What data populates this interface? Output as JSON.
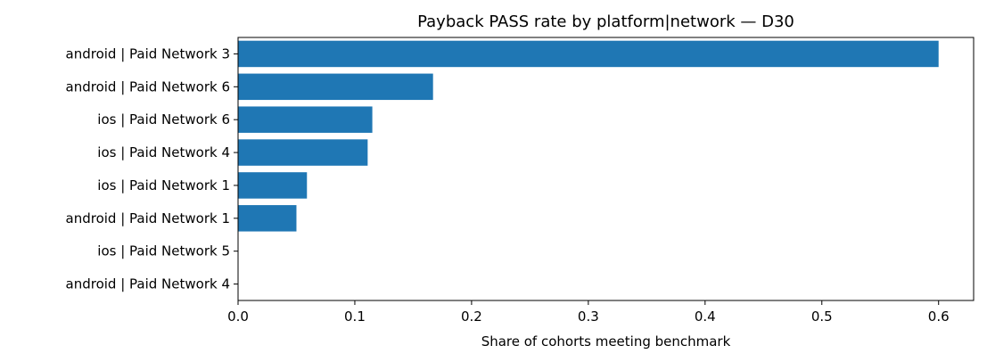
{
  "chart_data": {
    "type": "bar",
    "orientation": "horizontal",
    "title": "Payback PASS rate by platform|network — D30",
    "xlabel": "Share of cohorts meeting benchmark",
    "ylabel": "",
    "xlim": [
      0,
      0.63
    ],
    "xticks": [
      0.0,
      0.1,
      0.2,
      0.3,
      0.4,
      0.5,
      0.6
    ],
    "xtick_labels": [
      "0.0",
      "0.1",
      "0.2",
      "0.3",
      "0.4",
      "0.5",
      "0.6"
    ],
    "categories": [
      "android | Paid Network 3",
      "android | Paid Network 6",
      "ios | Paid Network 6",
      "ios | Paid Network 4",
      "ios | Paid Network 1",
      "android | Paid Network 1",
      "ios | Paid Network 5",
      "android | Paid Network 4"
    ],
    "values": [
      0.6,
      0.167,
      0.115,
      0.111,
      0.059,
      0.05,
      0.0,
      0.0
    ],
    "bar_color": "#1f77b4",
    "grid": false,
    "legend": "none"
  }
}
